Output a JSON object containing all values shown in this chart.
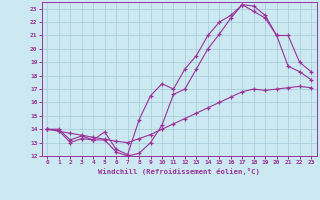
{
  "xlabel": "Windchill (Refroidissement éolien,°C)",
  "bg_color": "#cce8f0",
  "grid_color": "#aad0dc",
  "line_color": "#993399",
  "xlim": [
    -0.5,
    23.5
  ],
  "ylim": [
    12,
    23.5
  ],
  "xticks": [
    0,
    1,
    2,
    3,
    4,
    5,
    6,
    7,
    8,
    9,
    10,
    11,
    12,
    13,
    14,
    15,
    16,
    17,
    18,
    19,
    20,
    21,
    22,
    23
  ],
  "yticks": [
    12,
    13,
    14,
    15,
    16,
    17,
    18,
    19,
    20,
    21,
    22,
    23
  ],
  "line1_x": [
    0,
    1,
    2,
    3,
    4,
    5,
    6,
    7,
    8,
    9,
    10,
    11,
    12,
    13,
    14,
    15,
    16,
    17,
    18,
    19,
    20,
    21,
    22,
    23
  ],
  "line1_y": [
    14,
    13.9,
    13.0,
    13.3,
    13.2,
    13.2,
    12.3,
    12.0,
    12.2,
    13.0,
    14.3,
    16.6,
    17.0,
    18.5,
    20.0,
    21.1,
    22.3,
    23.3,
    22.8,
    22.3,
    21.0,
    18.7,
    18.3,
    17.7
  ],
  "line2_x": [
    0,
    1,
    2,
    3,
    4,
    5,
    6,
    7,
    8,
    9,
    10,
    11,
    12,
    13,
    14,
    15,
    16,
    17,
    18,
    19,
    20,
    21,
    22,
    23
  ],
  "line2_y": [
    14,
    14.0,
    13.2,
    13.5,
    13.2,
    13.8,
    12.5,
    12.1,
    14.7,
    16.5,
    17.4,
    17.0,
    18.5,
    19.5,
    21.0,
    22.0,
    22.5,
    23.3,
    23.2,
    22.5,
    21.0,
    21.0,
    19.0,
    18.3
  ],
  "line3_x": [
    0,
    1,
    2,
    3,
    4,
    5,
    6,
    7,
    8,
    9,
    10,
    11,
    12,
    13,
    14,
    15,
    16,
    17,
    18,
    19,
    20,
    21,
    22,
    23
  ],
  "line3_y": [
    14,
    13.85,
    13.7,
    13.55,
    13.4,
    13.25,
    13.1,
    13.0,
    13.3,
    13.6,
    14.0,
    14.4,
    14.8,
    15.2,
    15.6,
    16.0,
    16.4,
    16.8,
    17.0,
    16.9,
    17.0,
    17.1,
    17.2,
    17.1
  ]
}
